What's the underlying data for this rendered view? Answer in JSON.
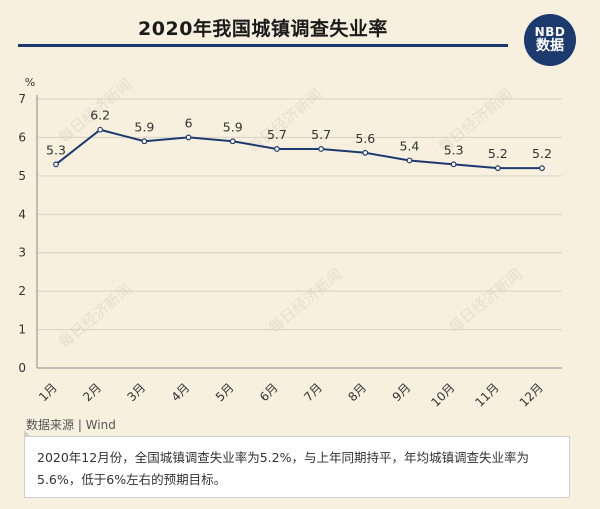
{
  "header": {
    "title": "2020年我国城镇调查失业率"
  },
  "logo": {
    "top": "NBD",
    "bottom": "数据"
  },
  "watermark": {
    "text": "每日经济新闻"
  },
  "chart_data": {
    "type": "line",
    "title": "2020年我国城镇调查失业率",
    "ylabel": "%",
    "xlabel": "",
    "ylim": [
      0,
      7
    ],
    "yticks": [
      "0",
      "1",
      "2",
      "3",
      "4",
      "5",
      "6",
      "7"
    ],
    "categories": [
      "1月",
      "2月",
      "3月",
      "4月",
      "5月",
      "6月",
      "7月",
      "8月",
      "9月",
      "10月",
      "11月",
      "12月"
    ],
    "values": [
      5.3,
      6.2,
      5.9,
      6,
      5.9,
      5.7,
      5.7,
      5.6,
      5.4,
      5.3,
      5.2,
      5.2
    ],
    "labels": [
      "5.3",
      "6.2",
      "5.9",
      "6",
      "5.9",
      "5.7",
      "5.7",
      "5.6",
      "5.4",
      "5.3",
      "5.2",
      "5.2"
    ],
    "grid": true,
    "line_color": "#1c3a6e"
  },
  "footer": {
    "source": "数据来源 | Wind",
    "note": "2020年12月份，全国城镇调查失业率为5.2%，与上年同期持平，年均城镇调查失业率为5.6%，低于6%左右的预期目标。"
  }
}
